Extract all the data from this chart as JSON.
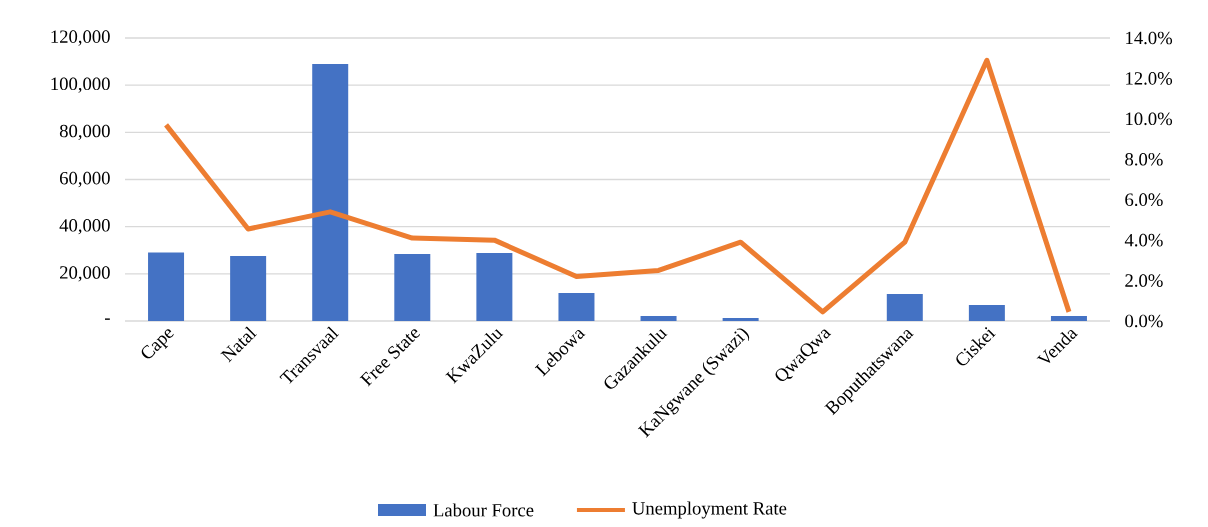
{
  "chart_data": {
    "type": "bar",
    "categories": [
      "Cape",
      "Natal",
      "Transvaal",
      "Free State",
      "KwaZulu",
      "Lebowa",
      "Gazankulu",
      "KaNgwane (Swazi)",
      "QwaQwa",
      "Boputhatswana",
      "Ciskei",
      "Venda"
    ],
    "series": [
      {
        "name": "Labour Force",
        "color": "#4472c4",
        "values": [
          29000,
          27600,
          109000,
          28400,
          28800,
          11900,
          2100,
          1300,
          0,
          11400,
          6800,
          2100
        ]
      },
      {
        "name": "Unemployment Rate",
        "type": "line",
        "axis": "y2",
        "color": "#ed7d31",
        "values": [
          9.7,
          4.55,
          5.4,
          4.1,
          4.0,
          2.2,
          2.5,
          3.9,
          0.45,
          3.9,
          12.9,
          0.45
        ]
      }
    ],
    "ylim": [
      0,
      120000
    ],
    "yticks": [
      {
        "value": 0,
        "label": "-"
      },
      {
        "value": 20000,
        "label": "20,000"
      },
      {
        "value": 40000,
        "label": "40,000"
      },
      {
        "value": 60000,
        "label": "60,000"
      },
      {
        "value": 80000,
        "label": "80,000"
      },
      {
        "value": 100000,
        "label": "100,000"
      },
      {
        "value": 120000,
        "label": "120,000"
      }
    ],
    "y2lim": [
      0,
      14
    ],
    "y2ticks": [
      {
        "value": 0,
        "label": "0.0%"
      },
      {
        "value": 2,
        "label": "2.0%"
      },
      {
        "value": 4,
        "label": "4.0%"
      },
      {
        "value": 6,
        "label": "6.0%"
      },
      {
        "value": 8,
        "label": "8.0%"
      },
      {
        "value": 10,
        "label": "10.0%"
      },
      {
        "value": 12,
        "label": "12.0%"
      },
      {
        "value": 14,
        "label": "14.0%"
      }
    ],
    "grid": "y",
    "legend": "bottom"
  }
}
